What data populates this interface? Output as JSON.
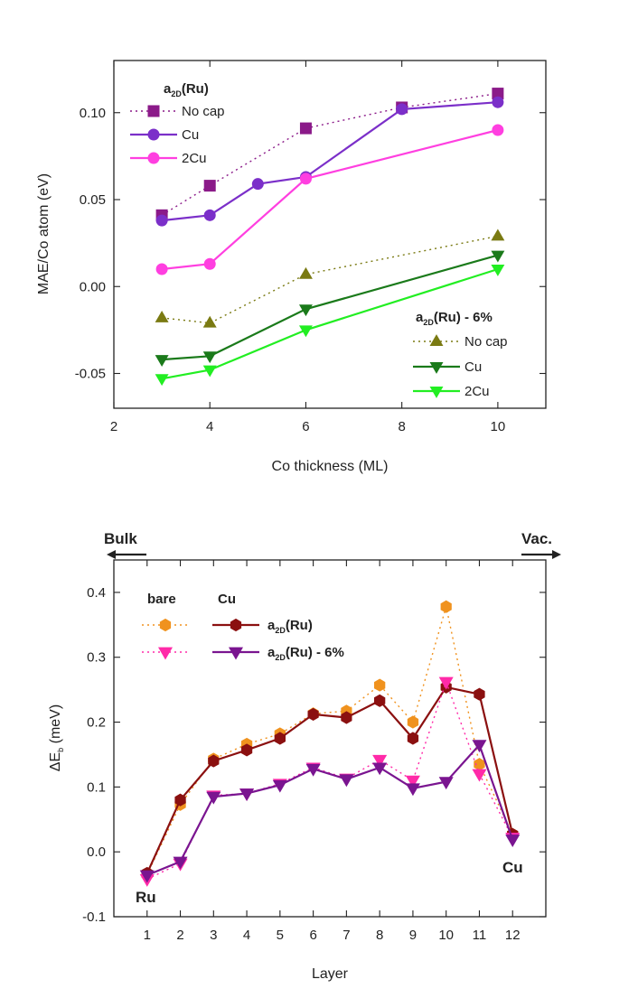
{
  "chart_data": [
    {
      "type": "line",
      "xlabel": "Co thickness (ML)",
      "ylabel": "MAE/Co atom (eV)",
      "xlim": [
        2,
        11
      ],
      "ylim": [
        -0.07,
        0.13
      ],
      "xticks": [
        2,
        4,
        6,
        8,
        10
      ],
      "yticks": [
        -0.05,
        0.0,
        0.05,
        0.1
      ],
      "ytick_labels": [
        "-0.05",
        "0.00",
        "0.05",
        "0.10"
      ],
      "legend_groups": [
        {
          "title_base": "a",
          "title_sub": "2D",
          "title_rest": "(Ru)",
          "position": "top-left"
        },
        {
          "title_base": "a",
          "title_sub": "2D",
          "title_rest": "(Ru) - 6%",
          "position": "bottom-right"
        }
      ],
      "series": [
        {
          "name": "No cap",
          "group": 0,
          "color": "#8b1a89",
          "marker": "square",
          "dash": true,
          "x": [
            3,
            4,
            6,
            8,
            10
          ],
          "y": [
            0.041,
            0.058,
            0.091,
            0.103,
            0.111
          ]
        },
        {
          "name": "Cu",
          "group": 0,
          "color": "#7b2fc9",
          "marker": "circle",
          "dash": false,
          "x": [
            3,
            4,
            5,
            6,
            8,
            10
          ],
          "y": [
            0.038,
            0.041,
            0.059,
            0.063,
            0.102,
            0.106
          ]
        },
        {
          "name": "2Cu",
          "group": 0,
          "color": "#ff3fe0",
          "marker": "circle",
          "dash": false,
          "x": [
            3,
            4,
            6,
            10
          ],
          "y": [
            0.01,
            0.013,
            0.062,
            0.09
          ]
        },
        {
          "name": "No cap",
          "group": 1,
          "color": "#7a7a12",
          "marker": "triangle-up",
          "dash": true,
          "x": [
            3,
            4,
            6,
            10
          ],
          "y": [
            -0.018,
            -0.021,
            0.007,
            0.029
          ]
        },
        {
          "name": "Cu",
          "group": 1,
          "color": "#1a7a1a",
          "marker": "triangle-down",
          "dash": false,
          "x": [
            3,
            4,
            6,
            10
          ],
          "y": [
            -0.042,
            -0.04,
            -0.013,
            0.018
          ]
        },
        {
          "name": "2Cu",
          "group": 1,
          "color": "#22ee22",
          "marker": "triangle-down",
          "dash": false,
          "x": [
            3,
            4,
            6,
            10
          ],
          "y": [
            -0.053,
            -0.048,
            -0.025,
            0.01
          ]
        }
      ]
    },
    {
      "type": "line",
      "xlabel": "Layer",
      "ylabel_base": "ΔE",
      "ylabel_sub": "b",
      "ylabel_rest": " (meV)",
      "xlim": [
        0,
        13
      ],
      "ylim": [
        -0.1,
        0.45
      ],
      "xticks": [
        1,
        2,
        3,
        4,
        5,
        6,
        7,
        8,
        9,
        10,
        11,
        12
      ],
      "yticks": [
        -0.1,
        0.0,
        0.1,
        0.2,
        0.3,
        0.4
      ],
      "ytick_labels": [
        "-0.1",
        "0.0",
        "0.1",
        "0.2",
        "0.3",
        "0.4"
      ],
      "arrow_left_label": "Bulk",
      "arrow_right_label": "Vac.",
      "annotations": [
        "Ru",
        "Cu"
      ],
      "legend_columns": [
        "bare",
        "Cu"
      ],
      "legend_rows": [
        {
          "base": "a",
          "sub": "2D",
          "rest": "(Ru)"
        },
        {
          "base": "a",
          "sub": "2D",
          "rest": "(Ru) - 6%"
        }
      ],
      "series": [
        {
          "name": "bare a2D(Ru)",
          "color": "#f0921e",
          "marker": "hexagon",
          "dash": true,
          "x": [
            1,
            2,
            3,
            4,
            5,
            6,
            7,
            8,
            9,
            10,
            11,
            12
          ],
          "y": [
            -0.035,
            0.073,
            0.143,
            0.166,
            0.182,
            0.213,
            0.217,
            0.257,
            0.2,
            0.378,
            0.135,
            0.027
          ]
        },
        {
          "name": "Cu a2D(Ru)",
          "color": "#8b1010",
          "marker": "hexagon",
          "dash": false,
          "x": [
            1,
            2,
            3,
            4,
            5,
            6,
            7,
            8,
            9,
            10,
            11,
            12
          ],
          "y": [
            -0.033,
            0.08,
            0.14,
            0.157,
            0.175,
            0.212,
            0.207,
            0.233,
            0.175,
            0.254,
            0.243,
            0.027
          ]
        },
        {
          "name": "bare a2D(Ru) - 6%",
          "color": "#ff2aa8",
          "marker": "triangle-down",
          "dash": true,
          "x": [
            1,
            2,
            3,
            4,
            5,
            6,
            7,
            8,
            9,
            10,
            11,
            12
          ],
          "y": [
            -0.042,
            -0.018,
            0.087,
            0.09,
            0.105,
            0.13,
            0.113,
            0.142,
            0.11,
            0.262,
            0.12,
            0.022
          ]
        },
        {
          "name": "Cu a2D(Ru) - 6%",
          "color": "#7a1590",
          "marker": "triangle-down",
          "dash": false,
          "x": [
            1,
            2,
            3,
            4,
            5,
            6,
            7,
            8,
            9,
            10,
            11,
            12
          ],
          "y": [
            -0.036,
            -0.015,
            0.085,
            0.09,
            0.103,
            0.128,
            0.112,
            0.13,
            0.098,
            0.108,
            0.165,
            0.019
          ]
        }
      ]
    }
  ]
}
